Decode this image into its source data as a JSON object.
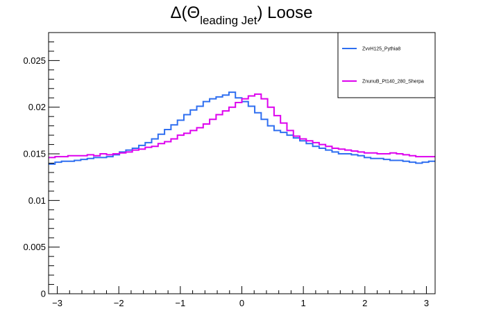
{
  "chart_data": {
    "type": "line",
    "style": "step-histogram",
    "title": {
      "prefix": "Δ(Θ",
      "subscript": "leading Jet",
      "suffix": ") Loose"
    },
    "xlabel": "",
    "ylabel": "",
    "xlim": [
      -3.14159,
      3.14159
    ],
    "ylim": [
      0,
      0.028
    ],
    "x_ticks": [
      -3,
      -2,
      -1,
      0,
      1,
      2,
      3
    ],
    "x_tick_labels": [
      "−3",
      "−2",
      "−1",
      "0",
      "1",
      "2",
      "3"
    ],
    "y_ticks": [
      0,
      0.005,
      0.01,
      0.015,
      0.02,
      0.025
    ],
    "y_tick_labels": [
      "0",
      "0.005",
      "0.01",
      "0.015",
      "0.02",
      "0.025"
    ],
    "n_bins": 60,
    "grid": false,
    "legend_position": "top-right",
    "series": [
      {
        "name": "ZvvH125_Pythia8",
        "color": "#2e6ef0",
        "values": [
          0.0139,
          0.0141,
          0.0142,
          0.0142,
          0.0143,
          0.0144,
          0.0145,
          0.0146,
          0.0146,
          0.0147,
          0.0149,
          0.0152,
          0.0154,
          0.0156,
          0.0159,
          0.0162,
          0.0166,
          0.0171,
          0.0176,
          0.0181,
          0.0186,
          0.0192,
          0.0197,
          0.0201,
          0.0206,
          0.0209,
          0.0211,
          0.0213,
          0.0216,
          0.021,
          0.0206,
          0.0201,
          0.0194,
          0.0187,
          0.018,
          0.0175,
          0.0173,
          0.017,
          0.0167,
          0.0164,
          0.0161,
          0.0158,
          0.0156,
          0.0154,
          0.0152,
          0.015,
          0.015,
          0.0149,
          0.0148,
          0.0146,
          0.0145,
          0.0145,
          0.0144,
          0.0143,
          0.0143,
          0.0142,
          0.0141,
          0.014,
          0.0141,
          0.0142
        ]
      },
      {
        "name": "ZnunuB_Pt140_280_Sherpa",
        "color": "#dd00ee",
        "values": [
          0.0146,
          0.0147,
          0.0147,
          0.0148,
          0.0148,
          0.0148,
          0.0149,
          0.0148,
          0.015,
          0.0149,
          0.015,
          0.0151,
          0.0152,
          0.0154,
          0.0155,
          0.0157,
          0.0158,
          0.0161,
          0.0163,
          0.0166,
          0.017,
          0.0172,
          0.0175,
          0.0178,
          0.0182,
          0.0187,
          0.0192,
          0.0196,
          0.02,
          0.0205,
          0.0209,
          0.0212,
          0.0214,
          0.0209,
          0.02,
          0.0191,
          0.0183,
          0.0175,
          0.0169,
          0.0166,
          0.0164,
          0.0162,
          0.016,
          0.0158,
          0.0156,
          0.0155,
          0.0154,
          0.0153,
          0.0152,
          0.0151,
          0.0151,
          0.015,
          0.015,
          0.0151,
          0.015,
          0.0149,
          0.0148,
          0.0147,
          0.0147,
          0.0147
        ]
      }
    ]
  }
}
